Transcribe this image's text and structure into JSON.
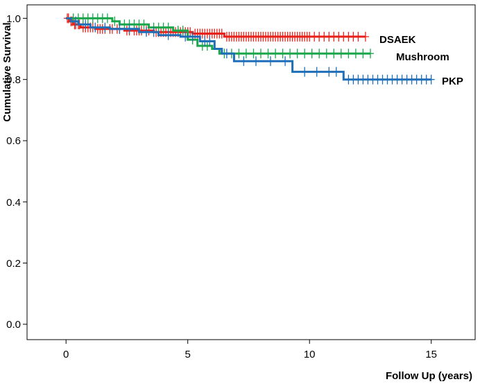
{
  "chart_data": {
    "type": "line",
    "subtype": "kaplan-meier-survival",
    "title": "",
    "xlabel": "Follow Up (years)",
    "ylabel": "Cumulative Survival",
    "xlim": [
      -1.6,
      16.8
    ],
    "ylim": [
      -0.08,
      1.06
    ],
    "xticks": [
      0,
      5,
      10,
      15
    ],
    "xtick_labels": [
      "0",
      "5",
      "10",
      "15"
    ],
    "yticks": [
      0.0,
      0.2,
      0.4,
      0.6,
      0.8,
      1.0
    ],
    "ytick_labels": [
      "0.0",
      "0.2",
      "0.4",
      "0.6",
      "0.8",
      "1.0"
    ],
    "grid": false,
    "legend": "labels at line ends",
    "series": [
      {
        "name": "DSAEK",
        "color": "#e8221b",
        "steps": [
          [
            0,
            1.0
          ],
          [
            0.15,
            0.99
          ],
          [
            0.3,
            0.98
          ],
          [
            0.6,
            0.97
          ],
          [
            1.2,
            0.965
          ],
          [
            2.4,
            0.96
          ],
          [
            3.6,
            0.955
          ],
          [
            5.2,
            0.95
          ],
          [
            6.5,
            0.94
          ],
          [
            12.3,
            0.94
          ]
        ],
        "censor_x": [
          0.05,
          0.1,
          0.2,
          0.25,
          0.35,
          0.4,
          0.5,
          0.55,
          0.7,
          0.8,
          0.9,
          1.0,
          1.1,
          1.3,
          1.4,
          1.5,
          1.6,
          1.8,
          1.9,
          2.1,
          2.2,
          2.5,
          2.6,
          2.8,
          2.9,
          3.0,
          3.1,
          3.3,
          3.4,
          3.7,
          3.8,
          3.9,
          4.0,
          4.1,
          4.2,
          4.3,
          4.4,
          4.5,
          4.6,
          4.7,
          4.8,
          4.9,
          5.0,
          5.1,
          5.3,
          5.4,
          5.5,
          5.6,
          5.7,
          5.8,
          5.9,
          6.0,
          6.1,
          6.2,
          6.3,
          6.4,
          6.6,
          6.7,
          6.8,
          6.9,
          7.0,
          7.1,
          7.2,
          7.3,
          7.4,
          7.5,
          7.6,
          7.7,
          7.8,
          7.9,
          8.0,
          8.1,
          8.2,
          8.3,
          8.4,
          8.5,
          8.6,
          8.7,
          8.8,
          8.9,
          9.0,
          9.1,
          9.2,
          9.3,
          9.4,
          9.5,
          9.6,
          9.7,
          9.8,
          9.9,
          10.0,
          10.2,
          10.4,
          10.6,
          10.8,
          11.0,
          11.2,
          11.4,
          11.6,
          11.8,
          12.0,
          12.3
        ]
      },
      {
        "name": "Mushroom",
        "color": "#1aa64a",
        "steps": [
          [
            0,
            1.0
          ],
          [
            1.9,
            0.99
          ],
          [
            2.2,
            0.98
          ],
          [
            3.4,
            0.97
          ],
          [
            4.4,
            0.96
          ],
          [
            5.0,
            0.93
          ],
          [
            5.4,
            0.91
          ],
          [
            6.0,
            0.9
          ],
          [
            6.3,
            0.885
          ],
          [
            12.5,
            0.885
          ]
        ],
        "censor_x": [
          0.3,
          0.5,
          0.7,
          0.9,
          1.1,
          1.3,
          1.5,
          1.7,
          2.0,
          2.4,
          2.6,
          2.8,
          3.0,
          3.2,
          3.6,
          3.8,
          4.0,
          4.2,
          4.6,
          4.8,
          5.2,
          5.6,
          5.8,
          6.5,
          6.8,
          7.1,
          7.4,
          7.7,
          8.0,
          8.3,
          8.6,
          8.9,
          9.2,
          9.5,
          9.8,
          10.1,
          10.4,
          10.7,
          11.0,
          11.3,
          11.6,
          11.9,
          12.2,
          12.5
        ]
      },
      {
        "name": "PKP",
        "color": "#1f6fb8",
        "steps": [
          [
            0,
            1.0
          ],
          [
            0.2,
            0.99
          ],
          [
            0.5,
            0.98
          ],
          [
            1.0,
            0.97
          ],
          [
            1.8,
            0.965
          ],
          [
            3.0,
            0.955
          ],
          [
            3.8,
            0.945
          ],
          [
            4.7,
            0.94
          ],
          [
            5.5,
            0.925
          ],
          [
            6.1,
            0.9
          ],
          [
            6.4,
            0.885
          ],
          [
            6.9,
            0.86
          ],
          [
            9.3,
            0.825
          ],
          [
            11.4,
            0.8
          ],
          [
            15.0,
            0.8
          ]
        ],
        "censor_x": [
          0.4,
          0.8,
          1.2,
          1.6,
          2.2,
          2.6,
          3.3,
          3.6,
          4.2,
          4.9,
          5.2,
          5.7,
          5.9,
          6.6,
          7.3,
          7.8,
          8.4,
          9.0,
          9.8,
          10.3,
          10.8,
          11.1,
          11.6,
          11.8,
          12.0,
          12.2,
          12.4,
          12.6,
          12.8,
          13.0,
          13.2,
          13.4,
          13.6,
          13.8,
          14.0,
          14.2,
          14.4,
          14.6,
          14.8,
          15.0
        ]
      }
    ]
  }
}
